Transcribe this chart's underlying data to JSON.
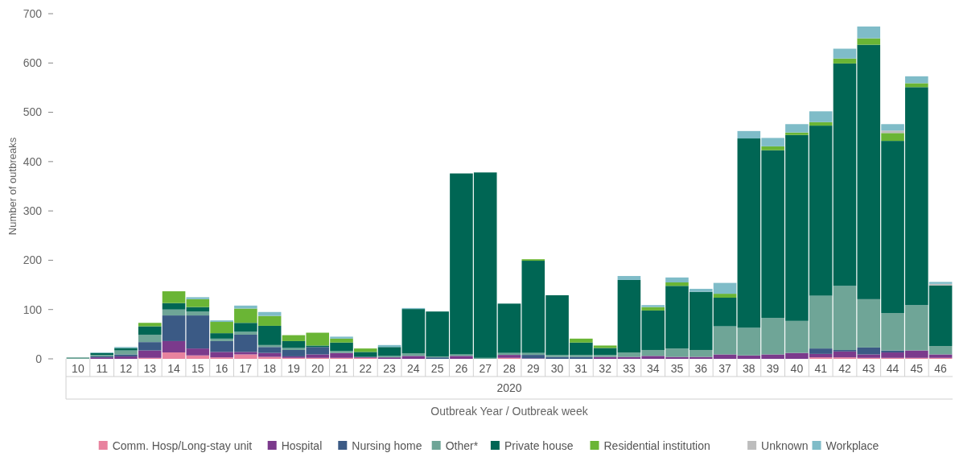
{
  "chart_data": {
    "type": "bar",
    "stacked": true,
    "xlabel": "Outbreak Year / Outbreak week",
    "ylabel": "Number of outbreaks",
    "annotations": [
      "2020"
    ],
    "categories": [
      "10",
      "11",
      "12",
      "13",
      "14",
      "15",
      "16",
      "17",
      "18",
      "19",
      "20",
      "21",
      "22",
      "23",
      "24",
      "25",
      "26",
      "27",
      "28",
      "29",
      "30",
      "31",
      "32",
      "33",
      "34",
      "35",
      "36",
      "37",
      "38",
      "39",
      "40",
      "41",
      "42",
      "43",
      "44",
      "45",
      "46"
    ],
    "ylim": [
      0,
      700
    ],
    "yticks": [
      0,
      100,
      200,
      300,
      400,
      500,
      600,
      700
    ],
    "grid": false,
    "legend": "bottom",
    "series": [
      {
        "name": "Comm. Hosp/Long-stay unit",
        "color": "#e8829e",
        "values": [
          0,
          0,
          0,
          2,
          13,
          7,
          3,
          9,
          4,
          2,
          2,
          2,
          2,
          0,
          0,
          0,
          0,
          0,
          2,
          0,
          0,
          0,
          0,
          0,
          0,
          0,
          0,
          0,
          0,
          0,
          0,
          3,
          3,
          2,
          2,
          2,
          2
        ]
      },
      {
        "name": "Hospital",
        "color": "#7b3a8c",
        "values": [
          0,
          3,
          5,
          15,
          23,
          14,
          11,
          5,
          8,
          3,
          7,
          10,
          2,
          3,
          6,
          0,
          6,
          0,
          6,
          1,
          0,
          0,
          4,
          4,
          6,
          4,
          4,
          9,
          7,
          9,
          12,
          7,
          12,
          7,
          11,
          15,
          7
        ]
      },
      {
        "name": "Nursing home",
        "color": "#3b5a85",
        "values": [
          0,
          2,
          4,
          17,
          52,
          67,
          22,
          35,
          12,
          13,
          15,
          0,
          0,
          0,
          0,
          3,
          0,
          0,
          0,
          7,
          4,
          4,
          0,
          0,
          0,
          0,
          0,
          0,
          0,
          0,
          0,
          11,
          3,
          14,
          4,
          0,
          0
        ]
      },
      {
        "name": "Other*",
        "color": "#6fa597",
        "values": [
          3,
          3,
          8,
          15,
          12,
          8,
          5,
          6,
          4,
          4,
          0,
          4,
          0,
          3,
          5,
          2,
          3,
          2,
          4,
          4,
          4,
          4,
          4,
          9,
          12,
          17,
          14,
          57,
          56,
          74,
          65,
          107,
          130,
          98,
          76,
          92,
          17
        ]
      },
      {
        "name": "Private house",
        "color": "#006654",
        "values": [
          0,
          4,
          5,
          17,
          13,
          9,
          11,
          18,
          39,
          14,
          3,
          17,
          10,
          18,
          90,
          91,
          367,
          376,
          100,
          187,
          121,
          25,
          14,
          147,
          80,
          127,
          118,
          58,
          384,
          340,
          377,
          345,
          451,
          516,
          349,
          442,
          123
        ]
      },
      {
        "name": "Residential institution",
        "color": "#6ab535",
        "values": [
          0,
          0,
          0,
          7,
          24,
          16,
          23,
          29,
          20,
          12,
          26,
          8,
          7,
          0,
          0,
          0,
          0,
          0,
          0,
          3,
          0,
          8,
          5,
          0,
          7,
          7,
          0,
          8,
          0,
          8,
          5,
          7,
          10,
          13,
          16,
          8,
          0
        ]
      },
      {
        "name": "Unknown",
        "color": "#bdbdbd",
        "values": [
          0,
          0,
          0,
          0,
          0,
          0,
          0,
          0,
          0,
          0,
          0,
          0,
          0,
          0,
          0,
          0,
          0,
          0,
          0,
          0,
          0,
          0,
          0,
          0,
          0,
          0,
          0,
          0,
          0,
          0,
          0,
          0,
          0,
          0,
          5,
          0,
          3
        ]
      },
      {
        "name": "Workplace",
        "color": "#7fbcc8",
        "values": [
          0,
          1,
          2,
          0,
          0,
          4,
          3,
          6,
          8,
          0,
          0,
          4,
          0,
          4,
          2,
          0,
          0,
          0,
          0,
          0,
          0,
          0,
          0,
          8,
          4,
          10,
          6,
          22,
          15,
          17,
          17,
          22,
          20,
          24,
          13,
          14,
          4
        ]
      }
    ]
  }
}
